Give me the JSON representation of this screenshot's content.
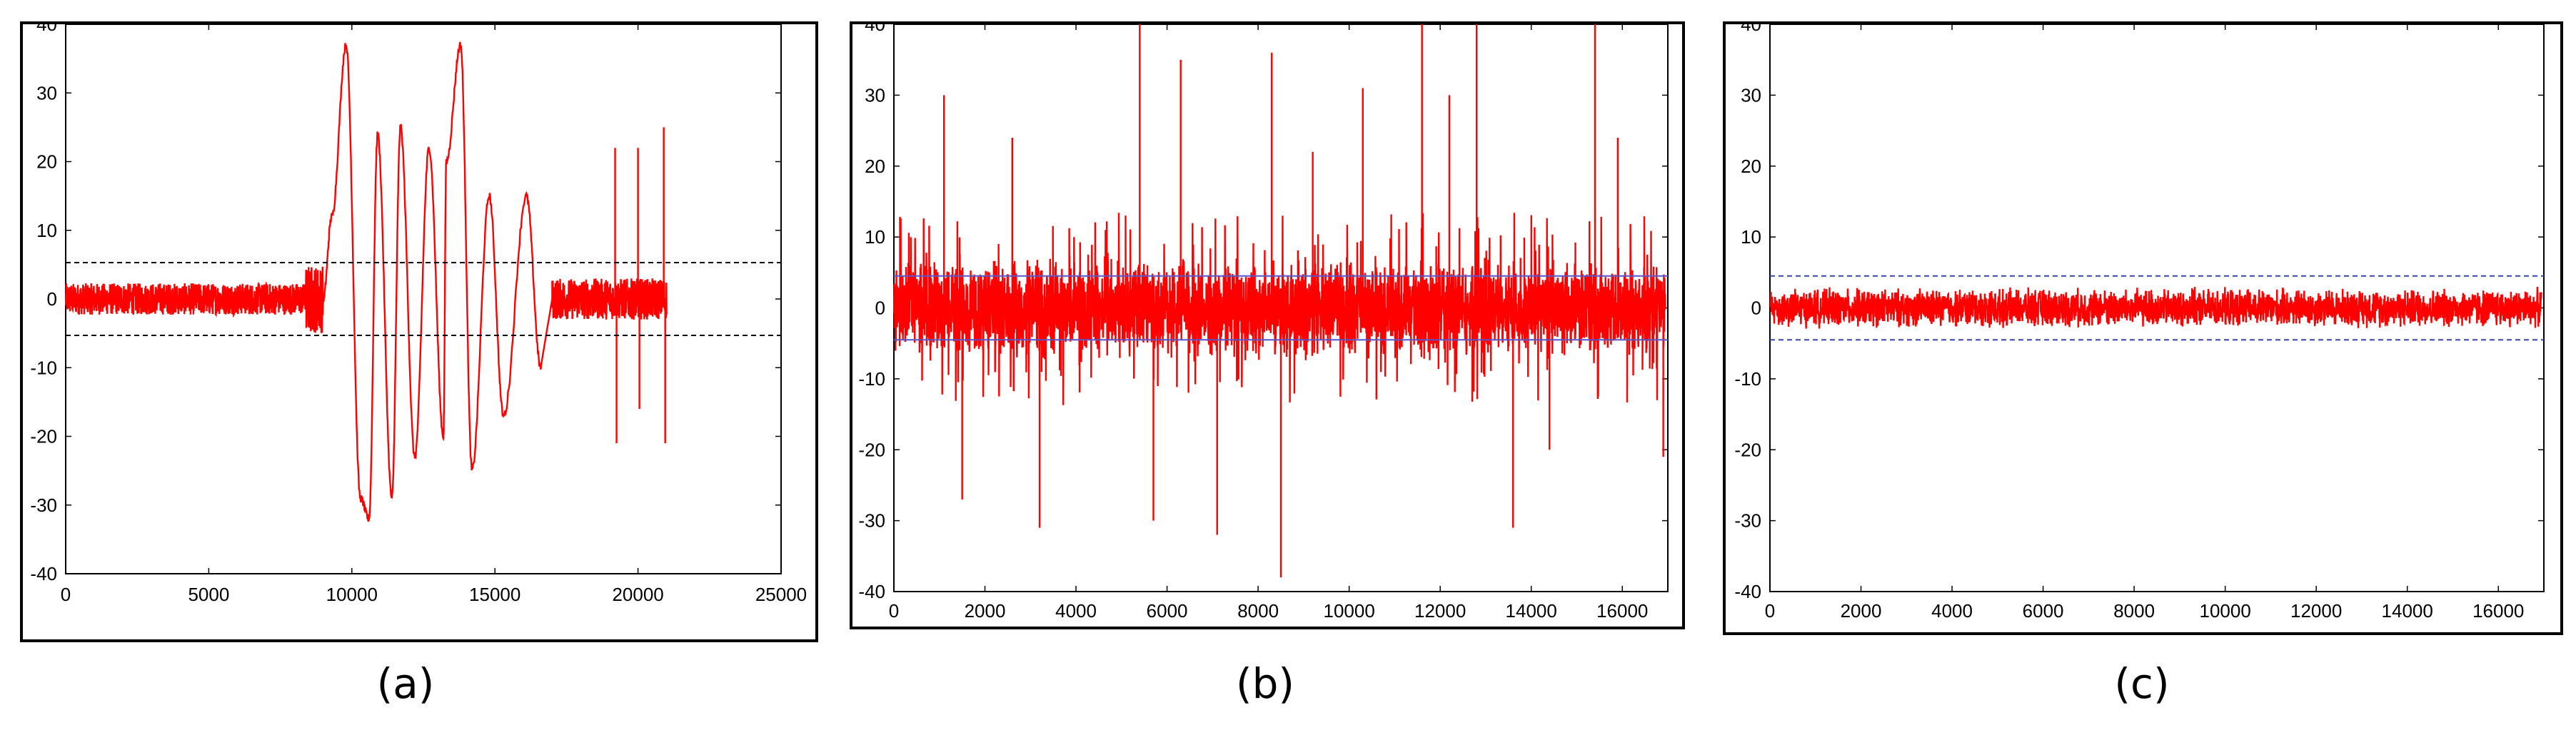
{
  "chart_data": [
    {
      "type": "line",
      "caption": "(a)",
      "x_ticks": [
        "0",
        "5000",
        "10000",
        "15000",
        "20000",
        "25000"
      ],
      "y_ticks": [
        "40",
        "30",
        "20",
        "10",
        "0",
        "-10",
        "-20",
        "-30",
        "-40"
      ],
      "xlim": [
        0,
        25000
      ],
      "ylim": [
        -40,
        40
      ],
      "threshold_lines": {
        "values": [
          5.3,
          -5.3
        ],
        "style": "dashed",
        "color": "#000000"
      },
      "series": [
        {
          "color": "#ff0000",
          "segments": [
            {
              "x": [
                0,
                8400
              ],
              "amplitude": 2.3,
              "kind": "noise"
            },
            {
              "x": [
                8400,
                9000
              ],
              "amplitude": 5,
              "kind": "noise"
            },
            {
              "x": [
                9000,
                17000
              ],
              "kind": "oscillation",
              "peaks": [
                [
                  9300,
                  12
                ],
                [
                  9800,
                  37
                ],
                [
                  10300,
                  -29
                ],
                [
                  10600,
                  -32
                ],
                [
                  10900,
                  24
                ],
                [
                  11400,
                  -29
                ],
                [
                  11700,
                  25
                ],
                [
                  12200,
                  -23
                ],
                [
                  12700,
                  22
                ],
                [
                  13200,
                  -20
                ],
                [
                  13300,
                  20
                ],
                [
                  13800,
                  37
                ],
                [
                  14200,
                  -25
                ],
                [
                  14800,
                  15
                ],
                [
                  15300,
                  -17
                ],
                [
                  16100,
                  15
                ],
                [
                  16600,
                  -10
                ]
              ]
            },
            {
              "x": [
                17000,
                21000
              ],
              "amplitude": 3,
              "kind": "noise"
            }
          ],
          "spikes": [
            [
              19200,
              22
            ],
            [
              19250,
              -21
            ],
            [
              20000,
              22
            ],
            [
              20050,
              -16
            ],
            [
              20900,
              25
            ],
            [
              20950,
              -21
            ]
          ]
        }
      ]
    },
    {
      "type": "line",
      "caption": "(b)",
      "x_ticks": [
        "0",
        "2000",
        "4000",
        "6000",
        "8000",
        "10000",
        "12000",
        "14000",
        "16000"
      ],
      "y_ticks": [
        "40",
        "30",
        "20",
        "10",
        "0",
        "-10",
        "-20",
        "-30",
        "-40"
      ],
      "xlim": [
        0,
        17000
      ],
      "ylim": [
        -40,
        40
      ],
      "threshold_lines": {
        "values": [
          4.5,
          -4.5
        ],
        "style": "solid",
        "color": "#5555cc"
      },
      "series": [
        {
          "color": "#ff0000",
          "noise_amplitude": 6,
          "spikes": [
            [
              1100,
              30
            ],
            [
              1500,
              -27
            ],
            [
              2600,
              24
            ],
            [
              3200,
              -31
            ],
            [
              5400,
              40
            ],
            [
              5700,
              -30
            ],
            [
              6300,
              35
            ],
            [
              7100,
              -32
            ],
            [
              8300,
              36
            ],
            [
              8500,
              -38
            ],
            [
              9200,
              22
            ],
            [
              10300,
              31
            ],
            [
              11600,
              40
            ],
            [
              12200,
              30
            ],
            [
              12800,
              40
            ],
            [
              13600,
              -31
            ],
            [
              14400,
              -20
            ],
            [
              15400,
              40
            ],
            [
              15900,
              24
            ],
            [
              16900,
              -21
            ]
          ]
        }
      ]
    },
    {
      "type": "line",
      "caption": "(c)",
      "x_ticks": [
        "0",
        "2000",
        "4000",
        "6000",
        "8000",
        "10000",
        "12000",
        "14000",
        "16000"
      ],
      "y_ticks": [
        "40",
        "30",
        "20",
        "10",
        "0",
        "-10",
        "-20",
        "-30",
        "-40"
      ],
      "xlim": [
        0,
        17000
      ],
      "ylim": [
        -40,
        40
      ],
      "threshold_lines": {
        "values": [
          4.5,
          -4.5
        ],
        "style": "dashed",
        "color": "#3344bb"
      },
      "series": [
        {
          "color": "#ff0000",
          "noise_amplitude": 2.5
        }
      ]
    }
  ]
}
